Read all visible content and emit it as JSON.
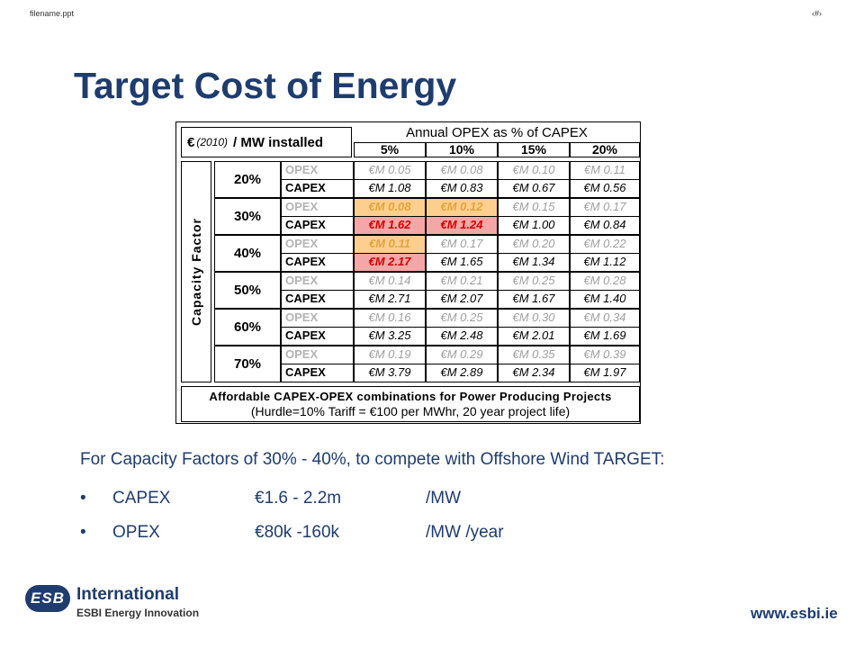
{
  "header": {
    "filename": "filename.ppt",
    "slide_number": "‹#›"
  },
  "title": "Target Cost of Energy",
  "table": {
    "corner_currency": "€",
    "corner_year": "(2010)",
    "corner_unit": "/ MW installed",
    "header_main": "Annual OPEX as % of CAPEX",
    "opex_pcts": [
      "5%",
      "10%",
      "15%",
      "20%"
    ],
    "row_axis_label": "Capacity Factor",
    "row_labels": {
      "opex": "OPEX",
      "capex": "CAPEX"
    },
    "rows": [
      {
        "cf": "20%",
        "opex": [
          "€M 0.05",
          "€M 0.08",
          "€M 0.10",
          "€M 0.11"
        ],
        "capex": [
          "€M 1.08",
          "€M 0.83",
          "€M 0.67",
          "€M 0.56"
        ]
      },
      {
        "cf": "30%",
        "opex": [
          "€M 0.08",
          "€M 0.12",
          "€M 0.15",
          "€M 0.17"
        ],
        "capex": [
          "€M 1.62",
          "€M 1.24",
          "€M 1.00",
          "€M 0.84"
        ]
      },
      {
        "cf": "40%",
        "opex": [
          "€M 0.11",
          "€M 0.17",
          "€M 0.20",
          "€M 0.22"
        ],
        "capex": [
          "€M 2.17",
          "€M 1.65",
          "€M 1.34",
          "€M 1.12"
        ]
      },
      {
        "cf": "50%",
        "opex": [
          "€M 0.14",
          "€M 0.21",
          "€M 0.25",
          "€M 0.28"
        ],
        "capex": [
          "€M 2.71",
          "€M 2.07",
          "€M 1.67",
          "€M 1.40"
        ]
      },
      {
        "cf": "60%",
        "opex": [
          "€M 0.16",
          "€M 0.25",
          "€M 0.30",
          "€M 0.34"
        ],
        "capex": [
          "€M 3.25",
          "€M 2.48",
          "€M 2.01",
          "€M 1.69"
        ]
      },
      {
        "cf": "70%",
        "opex": [
          "€M 0.19",
          "€M 0.29",
          "€M 0.35",
          "€M 0.39"
        ],
        "capex": [
          "€M 3.79",
          "€M 2.89",
          "€M 2.34",
          "€M 1.97"
        ]
      }
    ],
    "footer_line1": "Affordable CAPEX-OPEX combinations for Power Producing Projects",
    "footer_line2": "(Hurdle=10% Tariff = €100 per MWhr, 20 year project life)",
    "colors": {
      "highlight_opex_bg": "#fdcf8e",
      "highlight_opex_text": "#e2a53c",
      "highlight_capex_bg": "#f4a7a7",
      "highlight_capex_text": "#d40000"
    }
  },
  "body": {
    "intro": "For Capacity Factors of 30% - 40%, to compete with Offshore Wind TARGET:",
    "bullet_glyph": "•",
    "bullets": [
      {
        "label": "CAPEX",
        "value": "€1.6 - 2.2m",
        "unit": "/MW"
      },
      {
        "label": "OPEX",
        "value": "€80k -160k",
        "unit": "/MW /year"
      }
    ]
  },
  "logo": {
    "mark": "ESB",
    "name": "International",
    "sub": "ESBI Energy Innovation"
  },
  "website": "www.esbi.ie",
  "accent_color": "#1f3c6e"
}
